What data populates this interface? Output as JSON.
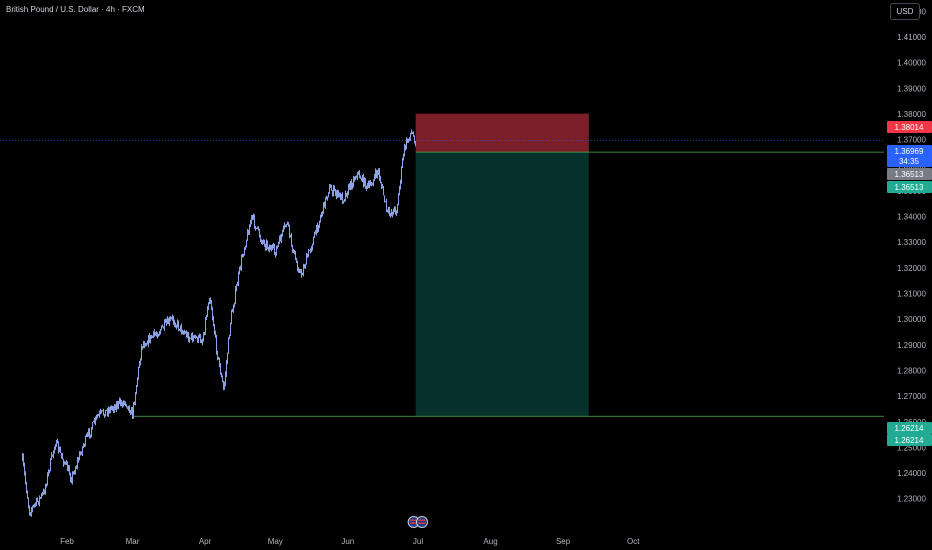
{
  "header": {
    "symbol_title": "British Pound / U.S. Dollar · 4h · FXCM",
    "currency_button": "USD"
  },
  "chart_data": {
    "type": "candlestick",
    "title": "British Pound / U.S. Dollar · 4h · FXCM",
    "y_axis": {
      "range": [
        1.225,
        1.425
      ],
      "ticks": [
        "1.42000",
        "1.41000",
        "1.40000",
        "1.39000",
        "1.38000",
        "1.37000",
        "1.36000",
        "1.35000",
        "1.34000",
        "1.33000",
        "1.32000",
        "1.31000",
        "1.30000",
        "1.29000",
        "1.28000",
        "1.27000",
        "1.26000",
        "1.25000",
        "1.24000",
        "1.23000"
      ]
    },
    "x_axis": {
      "labels": [
        {
          "label": "Feb",
          "date": "2025-02-01"
        },
        {
          "label": "Mar",
          "date": "2025-03-01"
        },
        {
          "label": "Apr",
          "date": "2025-04-01"
        },
        {
          "label": "May",
          "date": "2025-05-01"
        },
        {
          "label": "Jun",
          "date": "2025-06-01"
        },
        {
          "label": "Jul",
          "date": "2025-07-01"
        },
        {
          "label": "Aug",
          "date": "2025-08-01"
        },
        {
          "label": "Sep",
          "date": "2025-09-01"
        },
        {
          "label": "Oct",
          "date": "2025-10-01"
        }
      ]
    },
    "price_path": [
      {
        "date": "2025-01-13",
        "price": 1.245
      },
      {
        "date": "2025-01-16",
        "price": 1.225
      },
      {
        "date": "2025-01-22",
        "price": 1.232
      },
      {
        "date": "2025-01-27",
        "price": 1.252
      },
      {
        "date": "2025-02-03",
        "price": 1.238
      },
      {
        "date": "2025-02-08",
        "price": 1.251
      },
      {
        "date": "2025-02-14",
        "price": 1.262
      },
      {
        "date": "2025-02-21",
        "price": 1.266
      },
      {
        "date": "2025-02-26",
        "price": 1.268
      },
      {
        "date": "2025-03-01",
        "price": 1.263
      },
      {
        "date": "2025-03-05",
        "price": 1.29
      },
      {
        "date": "2025-03-12",
        "price": 1.295
      },
      {
        "date": "2025-03-18",
        "price": 1.3
      },
      {
        "date": "2025-03-25",
        "price": 1.293
      },
      {
        "date": "2025-03-31",
        "price": 1.292
      },
      {
        "date": "2025-04-03",
        "price": 1.31
      },
      {
        "date": "2025-04-06",
        "price": 1.288
      },
      {
        "date": "2025-04-09",
        "price": 1.272
      },
      {
        "date": "2025-04-12",
        "price": 1.3
      },
      {
        "date": "2025-04-17",
        "price": 1.325
      },
      {
        "date": "2025-04-21",
        "price": 1.34
      },
      {
        "date": "2025-04-25",
        "price": 1.331
      },
      {
        "date": "2025-05-01",
        "price": 1.326
      },
      {
        "date": "2025-05-06",
        "price": 1.338
      },
      {
        "date": "2025-05-09",
        "price": 1.325
      },
      {
        "date": "2025-05-12",
        "price": 1.317
      },
      {
        "date": "2025-05-18",
        "price": 1.333
      },
      {
        "date": "2025-05-24",
        "price": 1.351
      },
      {
        "date": "2025-05-30",
        "price": 1.347
      },
      {
        "date": "2025-06-05",
        "price": 1.357
      },
      {
        "date": "2025-06-10",
        "price": 1.351
      },
      {
        "date": "2025-06-14",
        "price": 1.358
      },
      {
        "date": "2025-06-18",
        "price": 1.341
      },
      {
        "date": "2025-06-22",
        "price": 1.343
      },
      {
        "date": "2025-06-25",
        "price": 1.366
      },
      {
        "date": "2025-06-28",
        "price": 1.373
      },
      {
        "date": "2025-06-30",
        "price": 1.3697
      }
    ],
    "position": {
      "type": "short",
      "start_date": "2025-06-30",
      "end_date": "2025-09-12",
      "stop_price": 1.38014,
      "entry_price": 1.36513,
      "target_price": 1.26214,
      "stop_zone_color": "#7a1f28",
      "target_zone_color": "#06322b"
    },
    "current_price": 1.36969,
    "current_price_line_color": "#2962ff",
    "bar_color": "#9db2ff"
  },
  "price_labels": [
    {
      "text": "1.38014",
      "price": 1.38014,
      "color": "#f23645"
    },
    {
      "text": "1.36969",
      "price": 1.36969,
      "color": "#2962ff",
      "subtext": "34:35"
    },
    {
      "text": "1.36513",
      "price": 1.36513,
      "color": "#787b86"
    },
    {
      "text": "1.36513",
      "price": 1.36513,
      "color": "#22ab94"
    },
    {
      "text": "1.26214",
      "price": 1.26214,
      "color": "#22ab94"
    },
    {
      "text": "1.26214",
      "price": 1.26214,
      "color": "#22ab94"
    }
  ],
  "events": [
    {
      "date": "2025-06-30",
      "icon": "us-flag-icon"
    },
    {
      "date": "2025-07-01",
      "icon": "us-flag-icon"
    }
  ]
}
